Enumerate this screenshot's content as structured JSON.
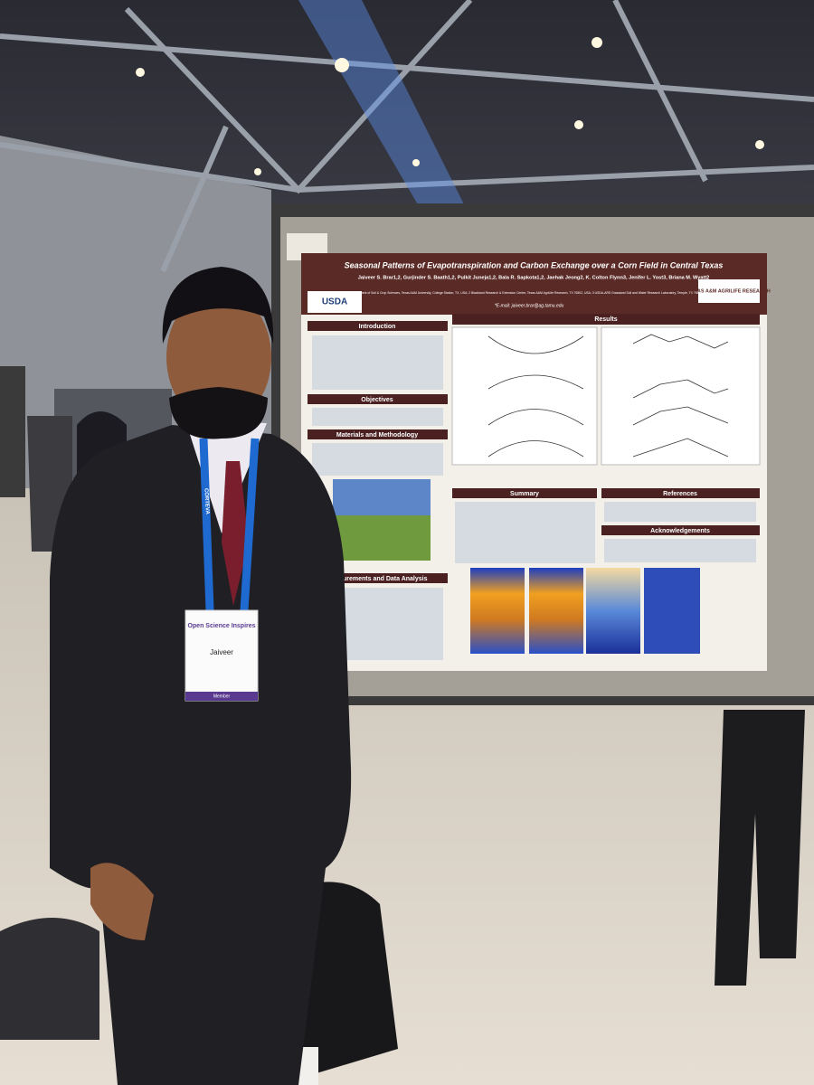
{
  "poster": {
    "title": "Seasonal Patterns of Evapotranspiration and Carbon Exchange over a Corn Field in Central Texas",
    "authors": "Jaiveer S. Brar1,2, Gurjinder S. Baath1,2, Pulkit Juneja1,2, Bala R. Sapkota1,2, Jaehak Jeong2, K. Colton Flynn3, Jenifer L. Yost3, Briana M. Wyatt2",
    "affiliations": "1 Department of Soil & Crop Sciences, Texas A&M University, College Station, TX, USA; 2 Blackland Research & Extension Center, Texas A&M AgriLife Research, TX 76502, USA; 3 USDA-ARS Grassland Soil and Water Research Laboratory, Temple, TX 76502, USA",
    "email": "*E-mail: jaiveer.brar@ag.tamu.edu",
    "logos": [
      "USDA",
      "TEXAS A&M AGRILIFE RESEARCH"
    ],
    "sections": [
      "Introduction",
      "Objectives",
      "Materials and Methodology",
      "Measurements and Data Analysis",
      "Results",
      "Summary",
      "References",
      "Acknowledgements"
    ]
  },
  "badge": {
    "event": "Open Science Inspires",
    "name": "Jaiveer",
    "role": "Member"
  },
  "lanyard": "CORTEVA"
}
